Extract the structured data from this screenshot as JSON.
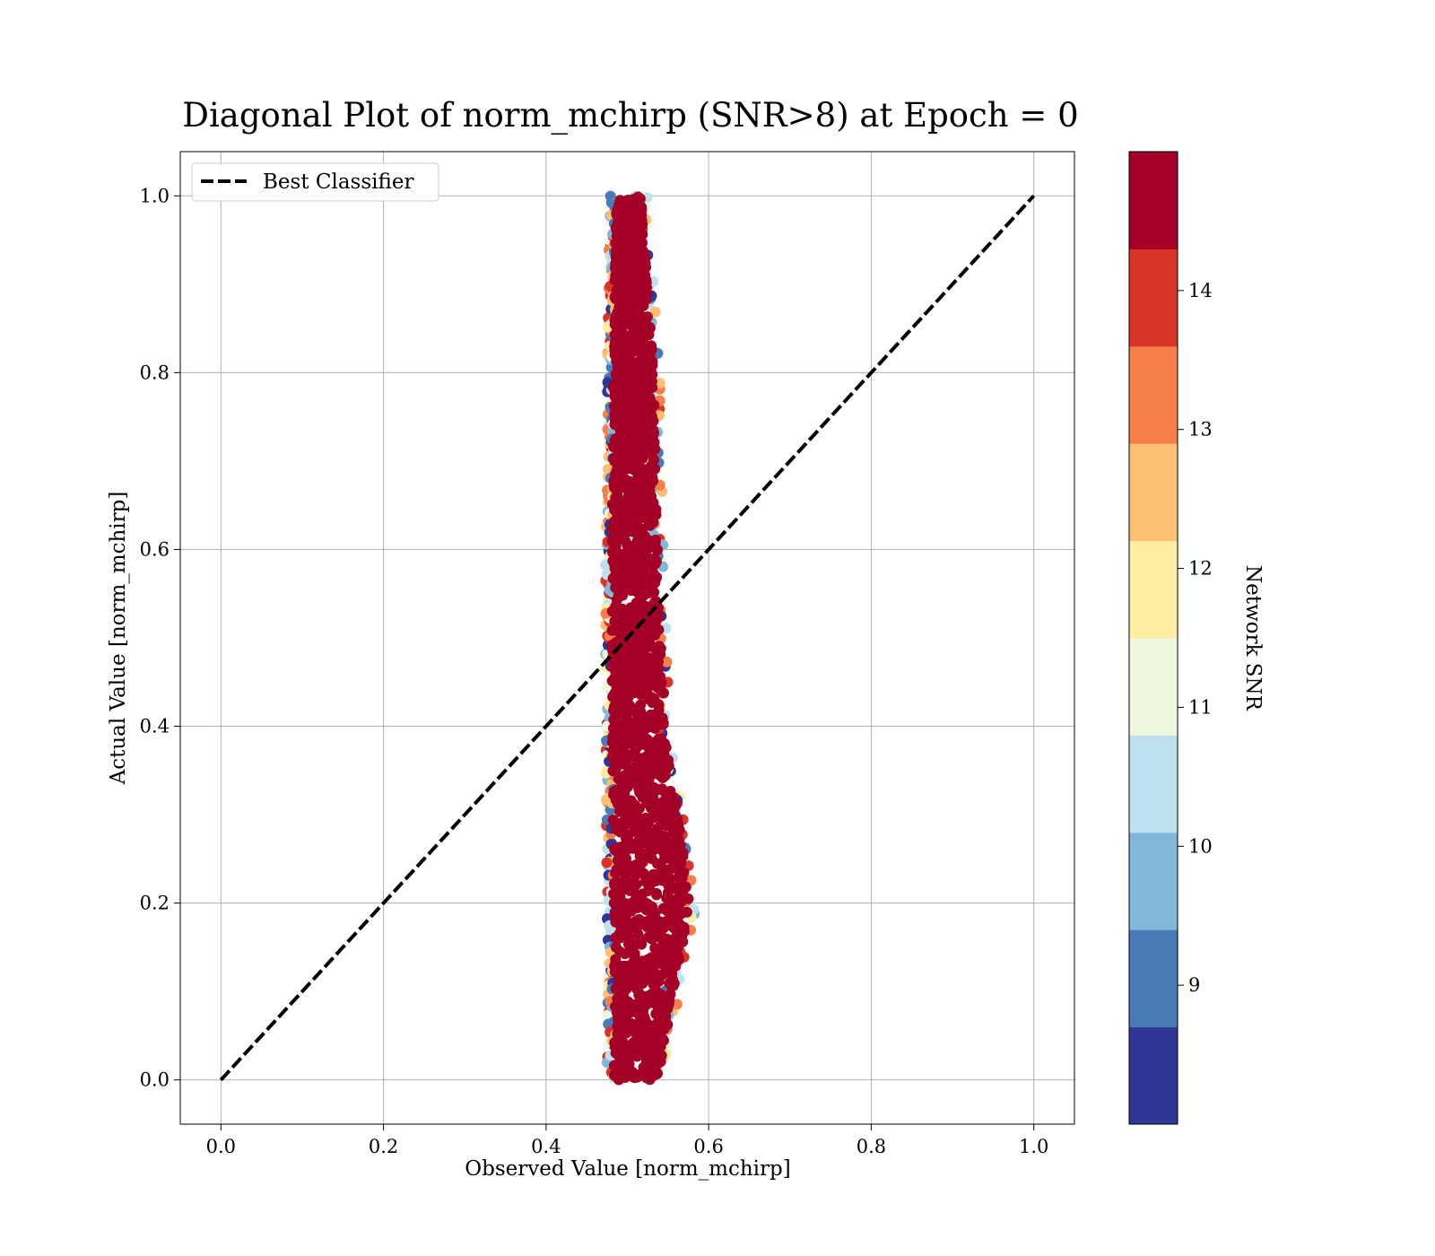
{
  "chart_data": {
    "type": "scatter",
    "title": "Diagonal Plot of norm_mchirp (SNR>8) at Epoch = 0",
    "xlabel": "Observed Value [norm_mchirp]",
    "ylabel": "Actual Value [norm_mchirp]",
    "xlim": [
      -0.05,
      1.05
    ],
    "ylim": [
      -0.05,
      1.05
    ],
    "xticks": [
      0.0,
      0.2,
      0.4,
      0.6,
      0.8,
      1.0
    ],
    "yticks": [
      0.0,
      0.2,
      0.4,
      0.6,
      0.8,
      1.0
    ],
    "xtick_labels": [
      "0.0",
      "0.2",
      "0.4",
      "0.6",
      "0.8",
      "1.0"
    ],
    "ytick_labels": [
      "0.0",
      "0.2",
      "0.4",
      "0.6",
      "0.8",
      "1.0"
    ],
    "grid": true,
    "legend": {
      "location": "top-left",
      "entries": [
        {
          "label": "Best Classifier",
          "style": "dashed",
          "color": "#000000"
        }
      ]
    },
    "reference_line": {
      "name": "Best Classifier",
      "x": [
        0.0,
        1.0
      ],
      "y": [
        0.0,
        1.0
      ],
      "style": "dashed",
      "color": "#000000"
    },
    "scatter_cloud": {
      "description_units": "data",
      "y_range": [
        0.0,
        1.0
      ],
      "x_center_at_y": [
        {
          "y": 0.0,
          "x_left": 0.475,
          "x_right": 0.545
        },
        {
          "y": 0.2,
          "x_left": 0.475,
          "x_right": 0.585
        },
        {
          "y": 0.4,
          "x_left": 0.473,
          "x_right": 0.555
        },
        {
          "y": 0.6,
          "x_left": 0.473,
          "x_right": 0.545
        },
        {
          "y": 0.8,
          "x_left": 0.475,
          "x_right": 0.54
        },
        {
          "y": 1.0,
          "x_left": 0.478,
          "x_right": 0.525
        }
      ],
      "color_variable": "Network SNR",
      "dominant_color_value": 14.5
    },
    "colorbar": {
      "label": "Network SNR",
      "range": [
        8,
        15
      ],
      "ticks": [
        9,
        10,
        11,
        12,
        13,
        14
      ],
      "tick_labels": [
        "9",
        "10",
        "11",
        "12",
        "13",
        "14"
      ],
      "bins": [
        {
          "from": 8.0,
          "to": 8.7,
          "color": "#313695"
        },
        {
          "from": 8.7,
          "to": 9.4,
          "color": "#4a7ab7"
        },
        {
          "from": 9.4,
          "to": 10.1,
          "color": "#82b8d7"
        },
        {
          "from": 10.1,
          "to": 10.8,
          "color": "#bde2ee"
        },
        {
          "from": 10.8,
          "to": 11.5,
          "color": "#eef8df"
        },
        {
          "from": 11.5,
          "to": 12.2,
          "color": "#feeda2"
        },
        {
          "from": 12.2,
          "to": 12.9,
          "color": "#fdbf71"
        },
        {
          "from": 12.9,
          "to": 13.6,
          "color": "#f57f4b"
        },
        {
          "from": 13.6,
          "to": 14.3,
          "color": "#d93429"
        },
        {
          "from": 14.3,
          "to": 15.0,
          "color": "#a50026"
        }
      ]
    }
  }
}
